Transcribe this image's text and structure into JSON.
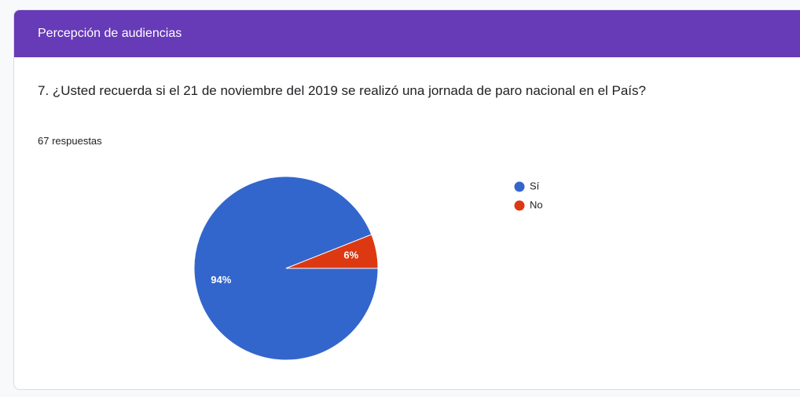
{
  "header": "Percepción de audiencias",
  "chart_data": {
    "type": "pie",
    "title": "7. ¿Usted recuerda si el 21 de noviembre del 2019 se realizó una jornada de paro nacional en el País?",
    "subtitle": "67 respuestas",
    "categories": [
      "Sí",
      "No"
    ],
    "values": [
      94,
      6
    ],
    "value_labels": [
      "94%",
      "6%"
    ],
    "colors": [
      "#3366cc",
      "#dc3912"
    ],
    "legend": "right"
  }
}
